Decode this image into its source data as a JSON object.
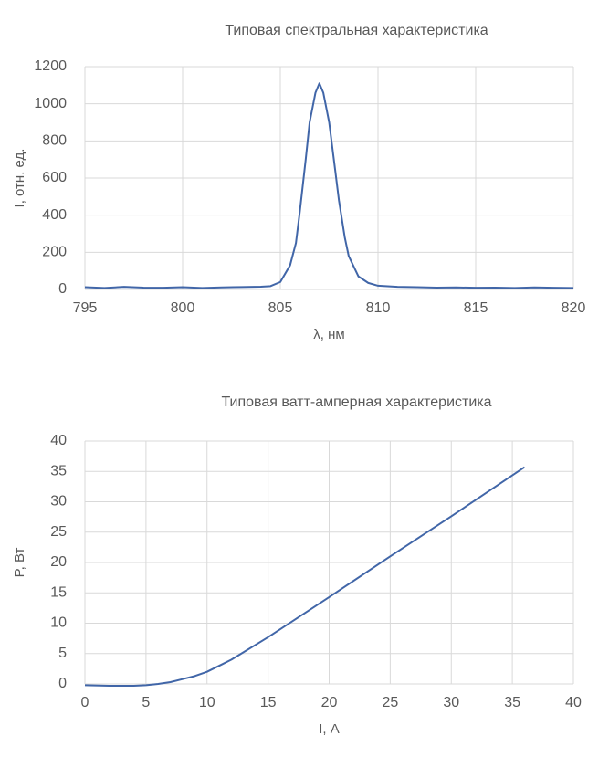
{
  "chart_data": [
    {
      "type": "line",
      "title": "Типовая спектральная характеристика",
      "x_label": "λ, нм",
      "y_label": "I, отн. ед.",
      "x": [
        795,
        796,
        797,
        798,
        799,
        800,
        801,
        802,
        803,
        804,
        804.5,
        805,
        805.5,
        805.8,
        806,
        806.3,
        806.5,
        806.8,
        807,
        807.2,
        807.5,
        807.8,
        808,
        808.3,
        808.5,
        809,
        809.5,
        810,
        811,
        812,
        813,
        814,
        815,
        816,
        817,
        818,
        819,
        820
      ],
      "values": [
        12,
        8,
        14,
        10,
        9,
        12,
        8,
        11,
        13,
        15,
        18,
        40,
        130,
        250,
        420,
        700,
        900,
        1060,
        1110,
        1060,
        900,
        650,
        480,
        280,
        180,
        70,
        35,
        20,
        14,
        12,
        10,
        11,
        9,
        10,
        8,
        11,
        9,
        8
      ],
      "color": "#4166a8",
      "xlim": [
        795,
        820
      ],
      "xticks": [
        795,
        800,
        805,
        810,
        815,
        820
      ],
      "ylim": [
        0,
        1200
      ],
      "yticks": [
        0,
        200,
        400,
        600,
        800,
        1000,
        1200
      ],
      "grid": true
    },
    {
      "type": "line",
      "title": "Типовая ватт-амперная характеристика",
      "x_label": "I, А",
      "y_label": "P, Вт",
      "x": [
        0,
        2,
        4,
        5,
        6,
        7,
        8,
        9,
        10,
        11,
        12,
        15,
        20,
        25,
        30,
        36
      ],
      "values": [
        -0.2,
        -0.3,
        -0.3,
        -0.2,
        0,
        0.3,
        0.8,
        1.3,
        2,
        3,
        4,
        7.7,
        14.3,
        21,
        27.6,
        35.7
      ],
      "color": "#4166a8",
      "xlim": [
        0,
        40
      ],
      "xticks": [
        0,
        5,
        10,
        15,
        20,
        25,
        30,
        35,
        40
      ],
      "ylim": [
        0,
        40
      ],
      "yticks": [
        0,
        5,
        10,
        15,
        20,
        25,
        30,
        35,
        40
      ],
      "grid": true
    }
  ]
}
